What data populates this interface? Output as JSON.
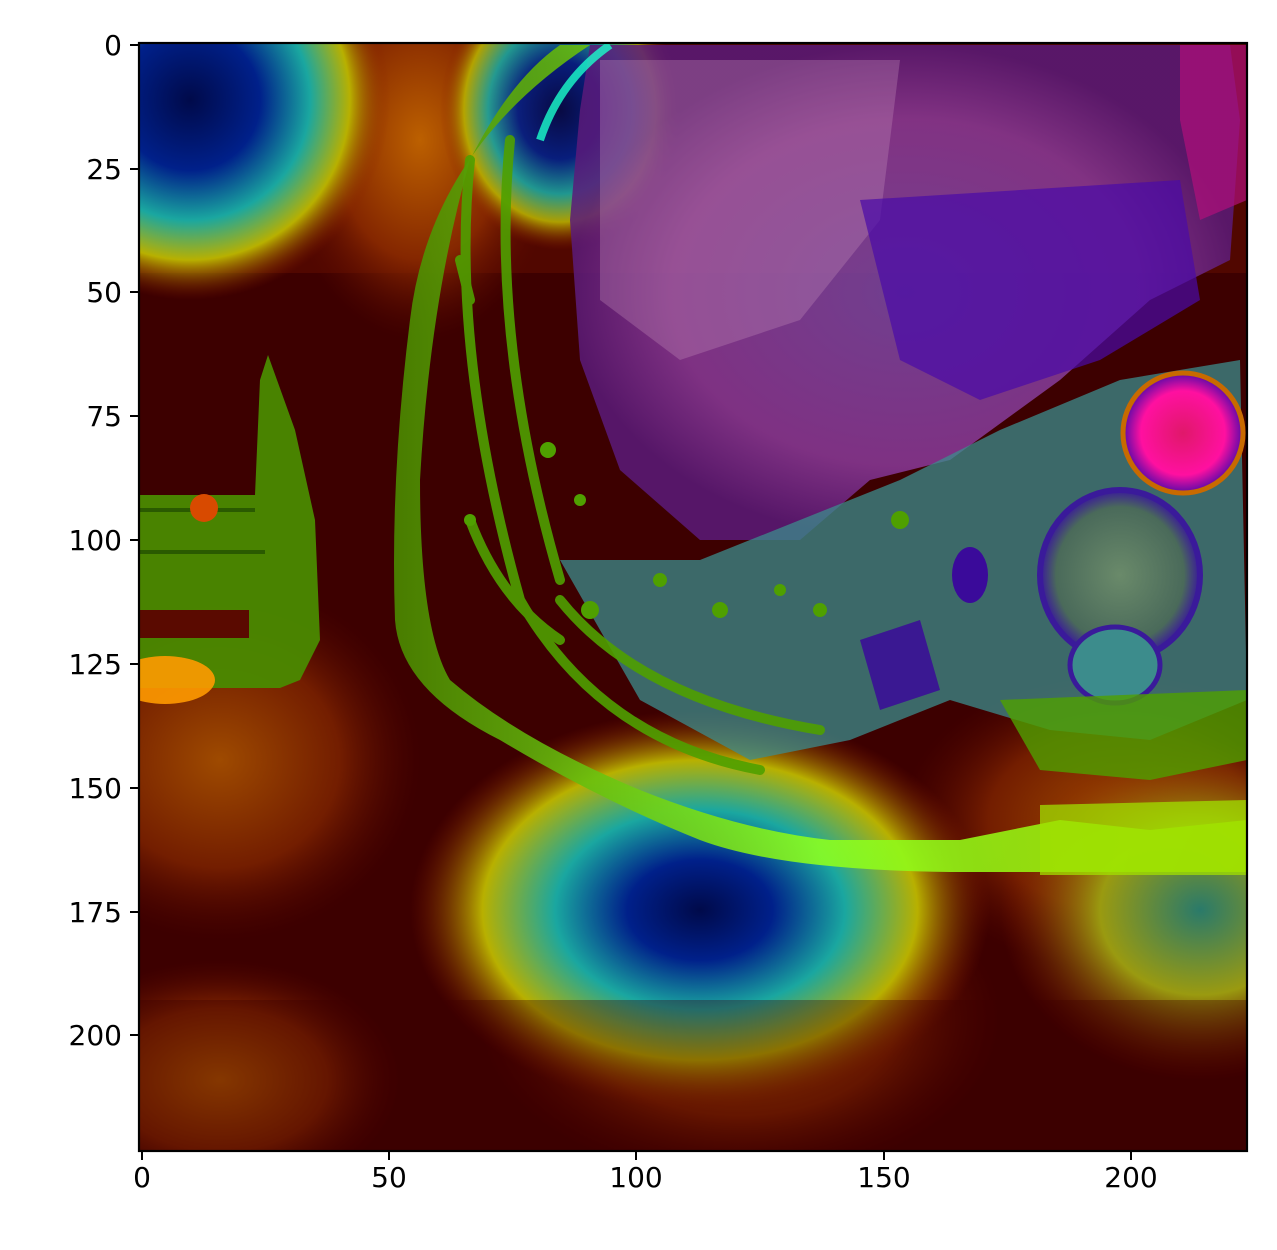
{
  "figure": {
    "type": "image-with-heatmap-overlay",
    "description_visible": "MRI axial slice overlaid with a jet-colormap attention heatmap",
    "x_axis": {
      "range": [
        0,
        224
      ],
      "ticks": [
        {
          "value": 0,
          "label": "0"
        },
        {
          "value": 50,
          "label": "50"
        },
        {
          "value": 100,
          "label": "100"
        },
        {
          "value": 150,
          "label": "150"
        },
        {
          "value": 200,
          "label": "200"
        }
      ]
    },
    "y_axis": {
      "range": [
        0,
        224
      ],
      "inverted": true,
      "ticks": [
        {
          "value": 0,
          "label": "0"
        },
        {
          "value": 25,
          "label": "25"
        },
        {
          "value": 50,
          "label": "50"
        },
        {
          "value": 75,
          "label": "75"
        },
        {
          "value": 100,
          "label": "100"
        },
        {
          "value": 125,
          "label": "125"
        },
        {
          "value": 150,
          "label": "150"
        },
        {
          "value": 175,
          "label": "175"
        },
        {
          "value": 200,
          "label": "200"
        }
      ]
    },
    "colors": {
      "background": "#3d0000",
      "heat_red": "#8a1a00",
      "heat_orange": "#c86a00",
      "heat_yellow": "#b8b000",
      "heat_cyan": "#1aa7a0",
      "heat_blue": "#00208a",
      "heat_navy": "#000a4a",
      "anatomy_green": "#4fa000",
      "anatomy_lime": "#8cff20",
      "anatomy_purple": "#5a0aa8",
      "anatomy_magenta": "#e0109a",
      "anatomy_teal": "#3c8c8c"
    }
  }
}
